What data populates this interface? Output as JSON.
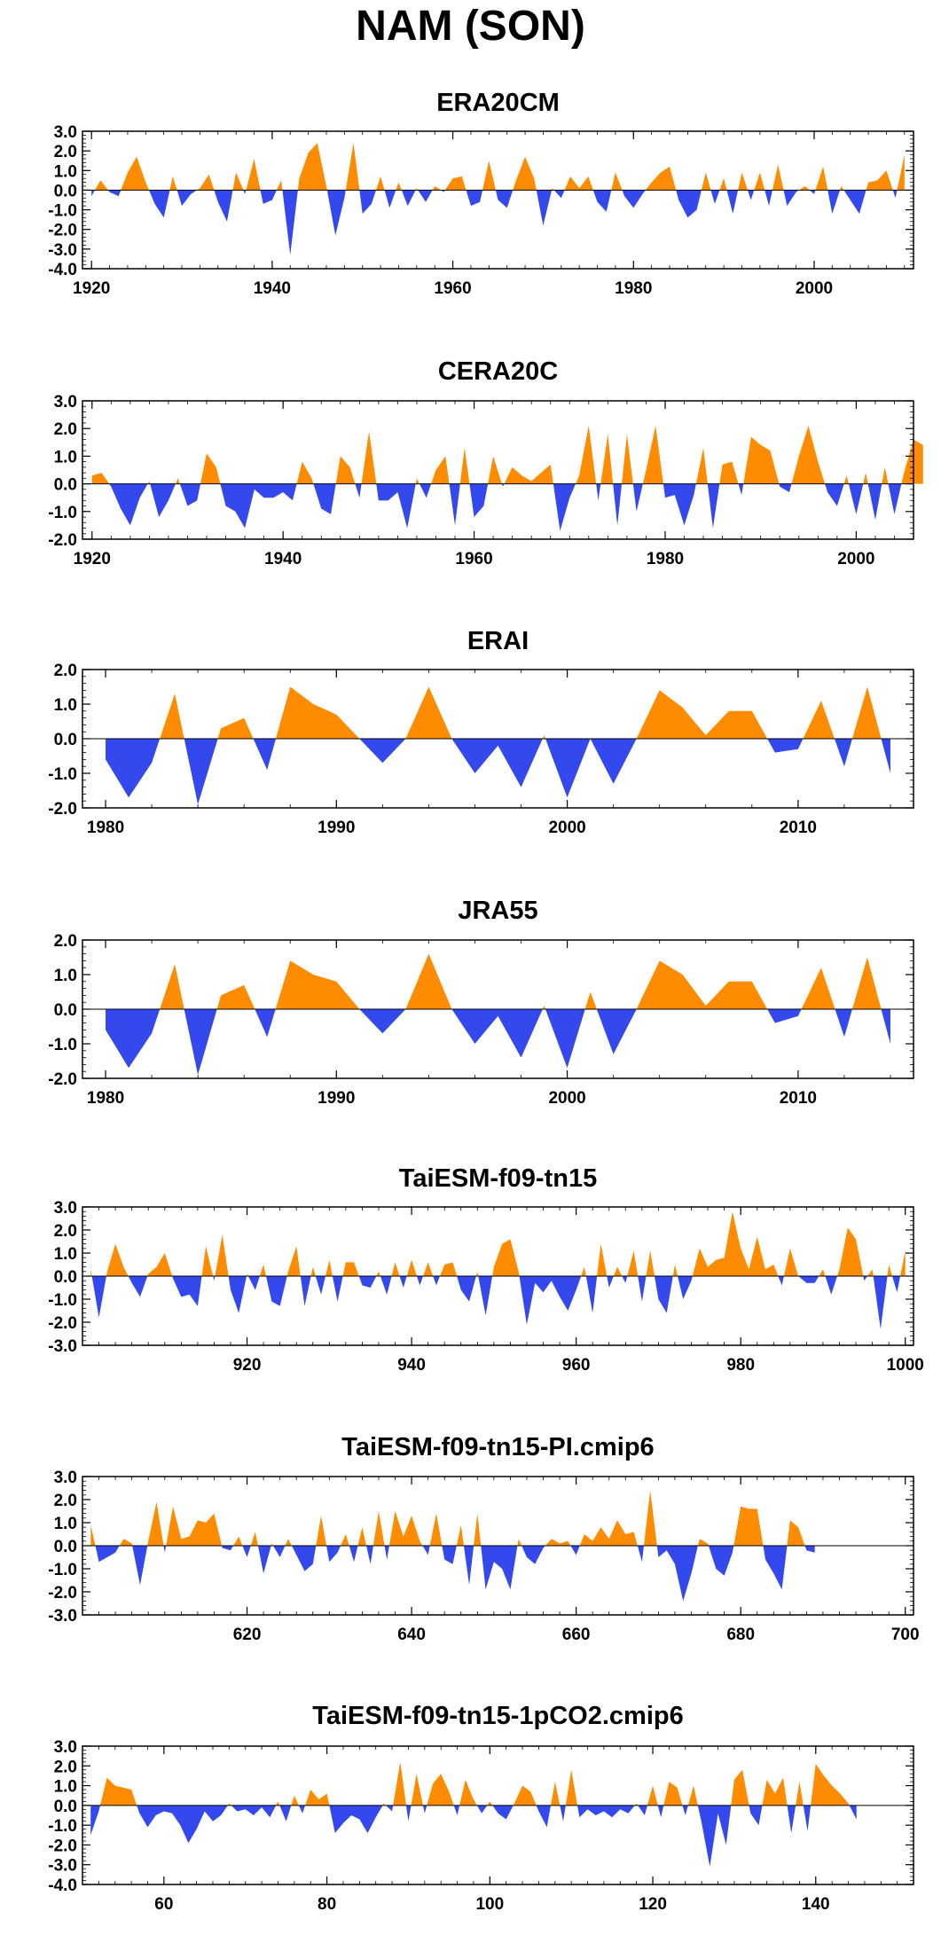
{
  "title": "NAM (SON)",
  "colors": {
    "positive": "#ff8c00",
    "negative": "#3349ee",
    "frame": "#000000"
  },
  "chart_data": [
    {
      "type": "area",
      "title": "ERA20CM",
      "x_start": 1920,
      "xlim": [
        1919,
        2011
      ],
      "xticks": [
        1920,
        1940,
        1960,
        1980,
        2000
      ],
      "ylim": [
        -4,
        3
      ],
      "yticks": [
        3,
        2,
        1,
        0,
        -1,
        -2,
        -3,
        -4
      ],
      "ytick_labels": [
        "3.0",
        "2.0",
        "1.0",
        "0.0",
        "-1.0",
        "-2.0",
        "-3.0",
        "-4.0"
      ],
      "values": [
        -0.3,
        0.5,
        -0.1,
        -0.3,
        0.9,
        1.7,
        0.4,
        -0.7,
        -1.4,
        0.7,
        -0.8,
        -0.2,
        0.1,
        0.8,
        -0.6,
        -1.6,
        0.9,
        -0.2,
        1.6,
        -0.7,
        -0.5,
        0.5,
        -3.3,
        0.6,
        1.9,
        2.4,
        0.2,
        -2.3,
        -0.4,
        2.4,
        -1.2,
        -0.7,
        0.7,
        -0.9,
        0.4,
        -0.8,
        0.1,
        -0.6,
        0.2,
        -0.1,
        0.6,
        0.7,
        -0.8,
        -0.6,
        1.5,
        -0.5,
        -0.9,
        0.5,
        1.7,
        0.6,
        -1.8,
        0.1,
        -0.4,
        0.7,
        0.1,
        0.7,
        -0.6,
        -1.1,
        0.9,
        -0.3,
        -0.9,
        -0.2,
        0.4,
        0.9,
        1.2,
        -0.5,
        -1.4,
        -1.0,
        0.9,
        -0.7,
        0.6,
        -1.2,
        0.9,
        -0.5,
        0.9,
        -0.8,
        1.3,
        -0.8,
        -0.1,
        0.2,
        -0.2,
        1.2,
        -1.2,
        0.2,
        -0.5,
        -1.2,
        0.4,
        0.5,
        1.0,
        -0.4,
        1.8
      ]
    },
    {
      "type": "area",
      "title": "CERA20C",
      "x_start": 1920,
      "xlim": [
        1919,
        2006
      ],
      "xticks": [
        1920,
        1940,
        1960,
        1980,
        2000
      ],
      "ylim": [
        -2,
        3
      ],
      "yticks": [
        3,
        2,
        1,
        0,
        -1,
        -2
      ],
      "ytick_labels": [
        "3.0",
        "2.0",
        "1.0",
        "0.0",
        "-1.0",
        "-2.0"
      ],
      "values": [
        0.3,
        0.4,
        -0.1,
        -0.9,
        -1.5,
        -0.5,
        0.1,
        -1.2,
        -0.6,
        0.2,
        -0.8,
        -0.6,
        1.1,
        0.6,
        -0.8,
        -1.0,
        -1.6,
        -0.2,
        -0.5,
        -0.5,
        -0.3,
        -0.6,
        0.8,
        0.2,
        -0.9,
        -1.1,
        1.0,
        0.6,
        -0.5,
        1.9,
        -0.6,
        -0.6,
        -0.3,
        -1.6,
        0.2,
        -0.5,
        0.5,
        1.0,
        -1.5,
        1.3,
        -1.2,
        -0.8,
        1.0,
        -0.1,
        0.6,
        0.3,
        0.1,
        0.4,
        0.7,
        -1.7,
        -0.5,
        0.3,
        2.1,
        -0.6,
        1.8,
        -1.5,
        1.8,
        -1.0,
        0.5,
        2.1,
        -0.5,
        -0.4,
        -1.5,
        -0.4,
        1.3,
        -1.6,
        0.7,
        0.8,
        -0.4,
        1.7,
        1.4,
        1.2,
        -0.1,
        -0.3,
        1.0,
        2.1,
        0.8,
        -0.3,
        -0.8,
        0.3,
        -1.1,
        0.4,
        -1.3,
        0.6,
        -1.1,
        0.4,
        1.6,
        1.4
      ]
    },
    {
      "type": "area",
      "title": "ERAI",
      "x_start": 1980,
      "xlim": [
        1979,
        2015
      ],
      "xticks": [
        1980,
        1990,
        2000,
        2010
      ],
      "ylim": [
        -2,
        2
      ],
      "yticks": [
        2,
        1,
        0,
        -1,
        -2
      ],
      "ytick_labels": [
        "2.0",
        "1.0",
        "0.0",
        "-1.0",
        "-2.0"
      ],
      "values": [
        -0.6,
        -1.7,
        -0.7,
        1.3,
        -1.9,
        0.3,
        0.6,
        -0.9,
        1.5,
        1.0,
        0.7,
        0.0,
        -0.7,
        0.0,
        1.5,
        0.0,
        -1.0,
        -0.2,
        -1.4,
        0.1,
        -1.7,
        0.0,
        -1.3,
        0.0,
        1.4,
        0.9,
        0.1,
        0.8,
        0.8,
        -0.4,
        -0.3,
        1.1,
        -0.8,
        1.5,
        -1.0
      ]
    },
    {
      "type": "area",
      "title": "JRA55",
      "x_start": 1980,
      "xlim": [
        1979,
        2015
      ],
      "xticks": [
        1980,
        1990,
        2000,
        2010
      ],
      "ylim": [
        -2,
        2
      ],
      "yticks": [
        2,
        1,
        0,
        -1,
        -2
      ],
      "ytick_labels": [
        "2.0",
        "1.0",
        "0.0",
        "-1.0",
        "-2.0"
      ],
      "values": [
        -0.6,
        -1.7,
        -0.7,
        1.3,
        -1.9,
        0.4,
        0.7,
        -0.8,
        1.4,
        1.0,
        0.8,
        0.0,
        -0.7,
        0.0,
        1.6,
        0.0,
        -1.0,
        -0.2,
        -1.4,
        0.1,
        -1.7,
        0.5,
        -1.3,
        0.0,
        1.4,
        1.0,
        0.1,
        0.8,
        0.8,
        -0.4,
        -0.2,
        1.2,
        -0.8,
        1.5,
        -1.0
      ]
    },
    {
      "type": "area",
      "title": "TaiESM-f09-tn15",
      "x_start": 901,
      "xlim": [
        900,
        1001
      ],
      "xticks": [
        920,
        940,
        960,
        980,
        1000
      ],
      "ylim": [
        -3,
        3
      ],
      "yticks": [
        3,
        2,
        1,
        0,
        -1,
        -2,
        -3
      ],
      "ytick_labels": [
        "3.0",
        "2.0",
        "1.0",
        "0.0",
        "-1.0",
        "-2.0",
        "-3.0"
      ],
      "values": [
        0.3,
        -1.8,
        0.2,
        1.4,
        0.4,
        -0.3,
        -0.9,
        0.1,
        0.4,
        1.0,
        -0.1,
        -0.9,
        -0.8,
        -1.3,
        1.3,
        -0.2,
        1.8,
        -0.6,
        -1.6,
        0.1,
        -0.6,
        0.5,
        -1.1,
        -1.3,
        0.2,
        1.3,
        -1.3,
        0.4,
        -0.8,
        0.7,
        -1.1,
        0.6,
        0.6,
        -0.4,
        -0.5,
        0.2,
        -0.8,
        0.6,
        -0.5,
        0.7,
        -0.4,
        0.6,
        -0.4,
        0.5,
        0.6,
        -0.6,
        -1.1,
        0.2,
        -1.7,
        0.4,
        1.4,
        1.6,
        0.2,
        -2.1,
        -0.3,
        -0.7,
        -0.2,
        -0.9,
        -1.5,
        -0.6,
        0.4,
        -1.6,
        1.4,
        -0.5,
        0.4,
        -0.3,
        1.1,
        -1.1,
        1.1,
        -1.0,
        -1.6,
        0.5,
        -1.0,
        -0.2,
        1.2,
        0.4,
        0.7,
        0.8,
        2.8,
        1.2,
        0.3,
        1.7,
        0.3,
        0.5,
        -0.4,
        1.2,
        0.0,
        -0.3,
        -0.3,
        0.3,
        -0.8,
        0.3,
        2.1,
        1.6,
        -0.2,
        0.3,
        -2.3,
        0.5,
        -0.7,
        1.1
      ]
    },
    {
      "type": "area",
      "title": "TaiESM-f09-tn15-PI.cmip6",
      "x_start": 601,
      "xlim": [
        600,
        701
      ],
      "xticks": [
        620,
        640,
        660,
        680,
        700
      ],
      "ylim": [
        -3,
        3
      ],
      "yticks": [
        3,
        2,
        1,
        0,
        -1,
        -2,
        -3
      ],
      "ytick_labels": [
        "3.0",
        "2.0",
        "1.0",
        "0.0",
        "-1.0",
        "-2.0",
        "-3.0"
      ],
      "values": [
        0.9,
        -0.7,
        -0.5,
        -0.3,
        0.3,
        0.1,
        -1.7,
        0.2,
        1.9,
        -0.3,
        1.7,
        0.3,
        0.4,
        1.1,
        1.0,
        1.4,
        -0.1,
        -0.2,
        0.4,
        -0.5,
        0.6,
        -1.2,
        0.1,
        -0.5,
        0.3,
        -0.4,
        -1.1,
        -0.8,
        1.3,
        -0.7,
        -0.3,
        0.5,
        -0.7,
        0.8,
        -0.8,
        1.5,
        -0.6,
        1.5,
        0.4,
        1.3,
        0.2,
        -0.4,
        1.4,
        -0.6,
        -0.8,
        0.9,
        -1.7,
        1.4,
        -1.9,
        -0.7,
        -1.0,
        -1.9,
        0.3,
        -0.5,
        -0.8,
        -0.1,
        0.3,
        0.1,
        0.2,
        -0.4,
        0.5,
        0.2,
        0.8,
        0.3,
        1.1,
        0.5,
        0.6,
        -0.7,
        2.4,
        -0.5,
        -0.2,
        -0.8,
        -2.4,
        -1.2,
        0.3,
        0.1,
        -1.0,
        -1.3,
        -0.3,
        1.7,
        1.6,
        1.6,
        -0.6,
        -1.2,
        -1.9,
        1.1,
        0.8,
        -0.2,
        -0.3
      ]
    },
    {
      "type": "area",
      "title": "TaiESM-f09-tn15-1pCO2.cmip6",
      "x_start": 51,
      "xlim": [
        50,
        152
      ],
      "xticks": [
        60,
        80,
        100,
        120,
        140
      ],
      "ylim": [
        -4,
        3
      ],
      "yticks": [
        3,
        2,
        1,
        0,
        -1,
        -2,
        -3,
        -4
      ],
      "ytick_labels": [
        "3.0",
        "2.0",
        "1.0",
        "0.0",
        "-1.0",
        "-2.0",
        "-3.0",
        "-4.0"
      ],
      "values": [
        -1.5,
        -0.3,
        1.4,
        1.0,
        0.9,
        0.8,
        -0.4,
        -1.1,
        -0.5,
        -0.3,
        -0.4,
        -1.0,
        -1.9,
        -1.2,
        -0.3,
        -0.8,
        -0.5,
        0.1,
        -0.3,
        -0.2,
        -0.5,
        -0.1,
        -0.6,
        0.2,
        -0.8,
        0.5,
        -0.4,
        0.8,
        0.3,
        0.6,
        -1.4,
        -0.9,
        -0.5,
        -0.7,
        -1.4,
        -0.6,
        0.1,
        -0.3,
        2.2,
        -0.8,
        1.6,
        -0.4,
        1.1,
        1.6,
        0.7,
        -0.5,
        1.3,
        0.3,
        -0.4,
        0.2,
        -0.4,
        -0.7,
        0.1,
        1.0,
        0.7,
        -0.3,
        -1.1,
        1.2,
        -0.8,
        1.8,
        -0.6,
        -0.2,
        -0.5,
        -0.3,
        -0.6,
        -0.2,
        -0.4,
        0.1,
        -0.5,
        1.0,
        -0.6,
        1.2,
        0.9,
        -0.5,
        1.0,
        -0.9,
        -3.1,
        -0.4,
        -2.0,
        1.3,
        1.8,
        -0.4,
        -1.0,
        1.3,
        0.6,
        1.4,
        -1.4,
        1.2,
        -1.3,
        2.1,
        1.5,
        1.0,
        0.6,
        0.1,
        -0.7
      ]
    }
  ]
}
